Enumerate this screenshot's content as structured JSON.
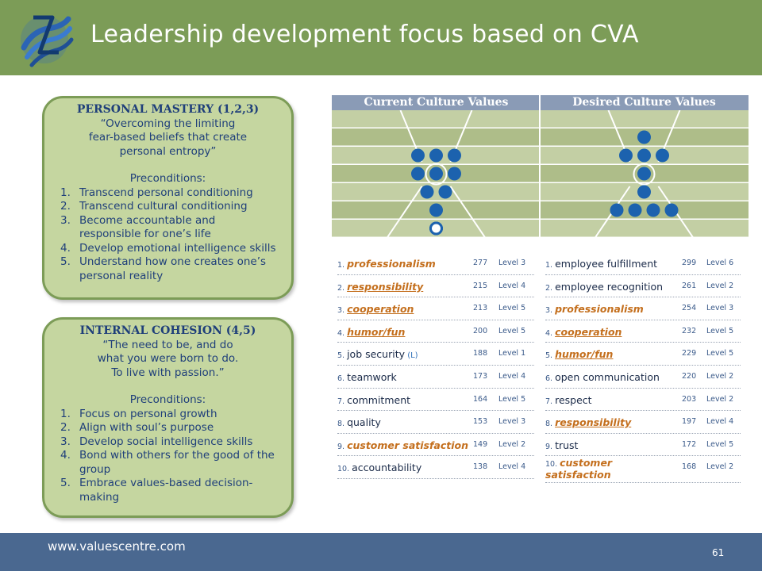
{
  "header": {
    "title": "Leadership development focus based on CVA"
  },
  "footer": {
    "url": "www.valuescentre.com",
    "page_number": "61"
  },
  "personal_mastery": {
    "heading": "PERSONAL MASTERY (1,2,3)",
    "quote_lines": [
      "“Overcoming the limiting",
      "fear-based beliefs that create",
      "personal entropy”"
    ],
    "preconditions_label": "Preconditions:",
    "items": [
      {
        "num": "1.",
        "text": "Transcend personal conditioning"
      },
      {
        "num": "2.",
        "text": "Transcend cultural conditioning"
      },
      {
        "num": "3.",
        "text": "Become accountable and responsible for one’s life"
      },
      {
        "num": "4.",
        "text": "Develop emotional intelligence skills"
      },
      {
        "num": "5.",
        "text": "Understand how one creates one’s personal reality"
      }
    ]
  },
  "internal_cohesion": {
    "heading": "INTERNAL COHESION (4,5)",
    "quote_lines": [
      "“The need to be, and do",
      "what you were born to do.",
      "To live with passion.”"
    ],
    "preconditions_label": "Preconditions:",
    "items": [
      {
        "num": "1.",
        "text": "Focus on personal growth"
      },
      {
        "num": "2.",
        "text": "Align with soul’s purpose"
      },
      {
        "num": "3.",
        "text": "Develop social intelligence skills"
      },
      {
        "num": "4.",
        "text": "Bond with others for the good of the group"
      },
      {
        "num": "5.",
        "text": "Embrace values-based decision-making"
      }
    ]
  },
  "charts": {
    "current_title": "Current Culture Values",
    "desired_title": "Desired Culture Values",
    "colors": {
      "band_light": "#c3cfa4",
      "band_dark": "#aebd89",
      "dot": "#1c62ae",
      "lines": "#ffffff"
    },
    "current_dots_per_level": [
      0,
      0,
      3,
      3,
      2,
      1,
      1
    ],
    "current_hollow_levels": [
      1
    ],
    "desired_dots_per_level": [
      0,
      1,
      3,
      1,
      1,
      4,
      0
    ]
  },
  "current_values": [
    {
      "rank": "1.",
      "name": "professionalism",
      "highlight": true,
      "underline": false,
      "tag": "",
      "votes": "277",
      "level": "Level 3"
    },
    {
      "rank": "2.",
      "name": "responsibility",
      "highlight": true,
      "underline": true,
      "tag": "",
      "votes": "215",
      "level": "Level 4"
    },
    {
      "rank": "3.",
      "name": "cooperation",
      "highlight": true,
      "underline": true,
      "tag": "",
      "votes": "213",
      "level": "Level 5"
    },
    {
      "rank": "4.",
      "name": "humor/fun",
      "highlight": true,
      "underline": true,
      "tag": "",
      "votes": "200",
      "level": "Level 5"
    },
    {
      "rank": "5.",
      "name": "job security",
      "highlight": false,
      "underline": false,
      "tag": "(L)",
      "votes": "188",
      "level": "Level 1"
    },
    {
      "rank": "6.",
      "name": "teamwork",
      "highlight": false,
      "underline": false,
      "tag": "",
      "votes": "173",
      "level": "Level 4"
    },
    {
      "rank": "7.",
      "name": "commitment",
      "highlight": false,
      "underline": false,
      "tag": "",
      "votes": "164",
      "level": "Level 5"
    },
    {
      "rank": "8.",
      "name": "quality",
      "highlight": false,
      "underline": false,
      "tag": "",
      "votes": "153",
      "level": "Level 3"
    },
    {
      "rank": "9.",
      "name": "customer satisfaction",
      "highlight": true,
      "underline": false,
      "tag": "",
      "votes": "149",
      "level": "Level 2"
    },
    {
      "rank": "10.",
      "name": "accountability",
      "highlight": false,
      "underline": false,
      "tag": "",
      "votes": "138",
      "level": "Level 4"
    }
  ],
  "desired_values": [
    {
      "rank": "1.",
      "name": "employee fulfillment",
      "highlight": false,
      "underline": false,
      "tag": "",
      "votes": "299",
      "level": "Level 6"
    },
    {
      "rank": "2.",
      "name": "employee recognition",
      "highlight": false,
      "underline": false,
      "tag": "",
      "votes": "261",
      "level": "Level 2"
    },
    {
      "rank": "3.",
      "name": "professionalism",
      "highlight": true,
      "underline": false,
      "tag": "",
      "votes": "254",
      "level": "Level 3"
    },
    {
      "rank": "4.",
      "name": "cooperation",
      "highlight": true,
      "underline": true,
      "tag": "",
      "votes": "232",
      "level": "Level 5"
    },
    {
      "rank": "5.",
      "name": "humor/fun",
      "highlight": true,
      "underline": true,
      "tag": "",
      "votes": "229",
      "level": "Level 5"
    },
    {
      "rank": "6.",
      "name": "open communication",
      "highlight": false,
      "underline": false,
      "tag": "",
      "votes": "220",
      "level": "Level 2"
    },
    {
      "rank": "7.",
      "name": "respect",
      "highlight": false,
      "underline": false,
      "tag": "",
      "votes": "203",
      "level": "Level 2"
    },
    {
      "rank": "8.",
      "name": "responsibility",
      "highlight": true,
      "underline": true,
      "tag": "",
      "votes": "197",
      "level": "Level 4"
    },
    {
      "rank": "9.",
      "name": "trust",
      "highlight": false,
      "underline": false,
      "tag": "",
      "votes": "172",
      "level": "Level 5"
    },
    {
      "rank": "10.",
      "name": "customer satisfaction",
      "highlight": true,
      "underline": false,
      "tag": "",
      "votes": "168",
      "level": "Level 2"
    }
  ]
}
